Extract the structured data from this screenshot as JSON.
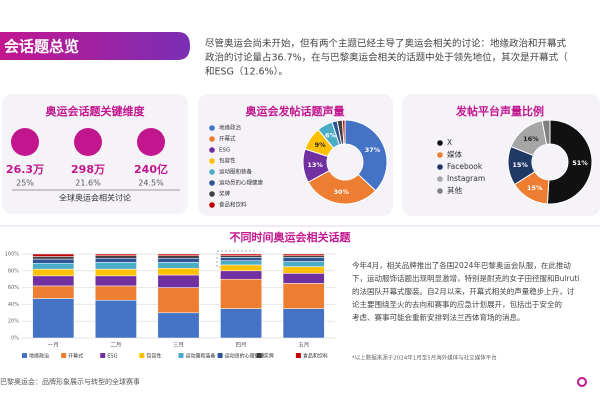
{
  "header": {
    "title": "会话题总览"
  },
  "intro": {
    "lines": [
      "尽管奥运会尚未开始，但有两个主题已经主导了奥运会相关的讨论：地缘政治和开幕式",
      "政治的讨论量占36.7%，在与巴黎奥运会相关的话题中处于领先地位，其次是开幕式（",
      "和ESG（12.6%）。"
    ]
  },
  "kpi": {
    "title": "奥运会话题关键维度",
    "items": [
      {
        "value": "26.3万",
        "label": "25%"
      },
      {
        "value": "298万",
        "label": "21.6%"
      },
      {
        "value": "240亿",
        "label": "24.5%"
      }
    ],
    "caption": "全球奥运会相关讨论"
  },
  "chart_data": [
    {
      "type": "pie",
      "title": "奥运会发帖话题声量",
      "legend": "left",
      "categories": [
        "地缘政治",
        "开幕式",
        "ESG",
        "包容性",
        "运动服和装备",
        "运动员的心理健康",
        "奖牌",
        "食品和饮料"
      ],
      "values": [
        37,
        30,
        13,
        9,
        6,
        2,
        2,
        1
      ],
      "value_labels": [
        "37%",
        "30%",
        "13%",
        "9%",
        "6%",
        null,
        null,
        null
      ],
      "colors": [
        "#4472c4",
        "#ed7d31",
        "#7030a0",
        "#ffc000",
        "#4bacc6",
        "#2f5597",
        "#404040",
        "#c00000"
      ]
    },
    {
      "type": "pie",
      "title": "发帖平台声量比例",
      "legend": "left",
      "categories": [
        "X",
        "媒体",
        "Facebook",
        "Instagram",
        "其他"
      ],
      "values": [
        51,
        15,
        15,
        16,
        3
      ],
      "value_labels": [
        "51%",
        "15%",
        "15%",
        "16%",
        null
      ],
      "colors": [
        "#111111",
        "#ed7d31",
        "#1f3864",
        "#a5a5a5",
        "#7f7f7f"
      ]
    },
    {
      "type": "stacked-bar",
      "title": "不同时间奥运会相关话题",
      "legend": "bottom",
      "categories": [
        "一月",
        "二月",
        "三月",
        "四月",
        "五月"
      ],
      "ylim": [
        0,
        100
      ],
      "yticks": [
        {
          "value": 0,
          "label": "0%"
        },
        {
          "value": 20,
          "label": "20%"
        },
        {
          "value": 40,
          "label": "40%"
        },
        {
          "value": 60,
          "label": "60%"
        },
        {
          "value": 80,
          "label": "80%"
        },
        {
          "value": 100,
          "label": "100%"
        }
      ],
      "series": [
        {
          "name": "地缘政治",
          "color": "#4472c4",
          "values": [
            47,
            45,
            30,
            35,
            35
          ]
        },
        {
          "name": "开幕式",
          "color": "#ed7d31",
          "values": [
            15,
            17,
            30,
            35,
            30
          ]
        },
        {
          "name": "ESG",
          "color": "#7030a0",
          "values": [
            12,
            12,
            15,
            10,
            12
          ]
        },
        {
          "name": "包容性",
          "color": "#ffc000",
          "values": [
            8,
            8,
            8,
            7,
            8
          ]
        },
        {
          "name": "运动服和装备",
          "color": "#4bacc6",
          "values": [
            7,
            8,
            7,
            5,
            6
          ]
        },
        {
          "name": "运动员的心理健康",
          "color": "#2f5597",
          "values": [
            5,
            5,
            5,
            4,
            5
          ]
        },
        {
          "name": "奖牌",
          "color": "#404040",
          "values": [
            3,
            3,
            3,
            2,
            2
          ]
        },
        {
          "name": "食品和饮料",
          "color": "#c00000",
          "values": [
            3,
            2,
            2,
            2,
            2
          ]
        }
      ]
    }
  ],
  "insight": {
    "lines": [
      "今年4月，相关品牌推出了各国2024年巴黎奥运会队服，在此推动",
      "下，运动服饰话题出现明显激增，特别是耐克的女子田径服和Bulruti",
      "的法国队开幕式服装。自2月以来，开幕式相关的声量稳步上升，讨",
      "论主要围绕圣火的去向和赛事的应急计划展开，包括出于安全的",
      "考虑、赛事可能会重新安排到法兰西体育场的消息。"
    ]
  },
  "footnote": "*以上数据来源于2024年1月至5月海外媒体与社交媒体平台",
  "footer": {
    "text": "巴黎奥运会：品牌形象展示与转型的全球赛事"
  }
}
